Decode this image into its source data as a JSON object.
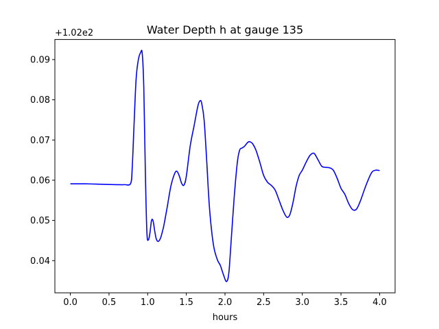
{
  "chart_data": {
    "type": "line",
    "title": "Water Depth h at gauge 135",
    "xlabel": "hours",
    "ylabel": "",
    "offset_label": "+1.02e2",
    "xlim": [
      -0.2,
      4.2
    ],
    "ylim": [
      0.032,
      0.095
    ],
    "xticks": [
      0.0,
      0.5,
      1.0,
      1.5,
      2.0,
      2.5,
      3.0,
      3.5,
      4.0
    ],
    "xtick_labels": [
      "0.0",
      "0.5",
      "1.0",
      "1.5",
      "2.0",
      "2.5",
      "3.0",
      "3.5",
      "4.0"
    ],
    "yticks": [
      0.04,
      0.05,
      0.06,
      0.07,
      0.08,
      0.09
    ],
    "ytick_labels": [
      "0.04",
      "0.05",
      "0.06",
      "0.07",
      "0.08",
      "0.09"
    ],
    "grid": false,
    "line_color": "#0000ff",
    "series": [
      {
        "x": [
          0.0,
          0.2,
          0.4,
          0.6,
          0.7,
          0.78,
          0.8,
          0.82,
          0.85,
          0.88,
          0.91,
          0.93,
          0.95,
          0.97,
          0.99,
          1.01,
          1.03,
          1.05,
          1.07,
          1.09,
          1.11,
          1.13,
          1.15,
          1.17,
          1.19,
          1.21,
          1.25,
          1.3,
          1.35,
          1.38,
          1.41,
          1.44,
          1.47,
          1.5,
          1.55,
          1.6,
          1.65,
          1.68,
          1.7,
          1.73,
          1.76,
          1.8,
          1.85,
          1.9,
          1.94,
          1.98,
          2.02,
          2.05,
          2.08,
          2.12,
          2.16,
          2.19,
          2.22,
          2.25,
          2.3,
          2.33,
          2.36,
          2.4,
          2.45,
          2.5,
          2.55,
          2.6,
          2.65,
          2.7,
          2.75,
          2.8,
          2.84,
          2.88,
          2.92,
          2.96,
          3.0,
          3.05,
          3.1,
          3.15,
          3.2,
          3.25,
          3.3,
          3.35,
          3.4,
          3.45,
          3.5,
          3.55,
          3.6,
          3.65,
          3.7,
          3.75,
          3.8,
          3.85,
          3.9,
          3.95,
          4.0
        ],
        "y": [
          0.0591,
          0.0591,
          0.059,
          0.0589,
          0.0589,
          0.0592,
          0.063,
          0.072,
          0.085,
          0.09,
          0.0918,
          0.0915,
          0.083,
          0.062,
          0.047,
          0.0452,
          0.047,
          0.05,
          0.0499,
          0.0475,
          0.0455,
          0.0448,
          0.045,
          0.0458,
          0.0472,
          0.0488,
          0.053,
          0.0585,
          0.0617,
          0.0622,
          0.061,
          0.0592,
          0.0588,
          0.061,
          0.0685,
          0.0735,
          0.0785,
          0.0798,
          0.079,
          0.075,
          0.066,
          0.053,
          0.044,
          0.0403,
          0.0388,
          0.0365,
          0.0348,
          0.037,
          0.045,
          0.056,
          0.0645,
          0.0675,
          0.068,
          0.0684,
          0.0695,
          0.0695,
          0.069,
          0.0675,
          0.0645,
          0.0612,
          0.0595,
          0.0587,
          0.0575,
          0.055,
          0.0525,
          0.0508,
          0.0515,
          0.0545,
          0.0585,
          0.0612,
          0.0625,
          0.0645,
          0.0662,
          0.0667,
          0.0652,
          0.0635,
          0.0632,
          0.0631,
          0.0625,
          0.0605,
          0.058,
          0.0565,
          0.0542,
          0.0527,
          0.0528,
          0.0548,
          0.0575,
          0.06,
          0.062,
          0.0625,
          0.0624
        ]
      }
    ]
  }
}
